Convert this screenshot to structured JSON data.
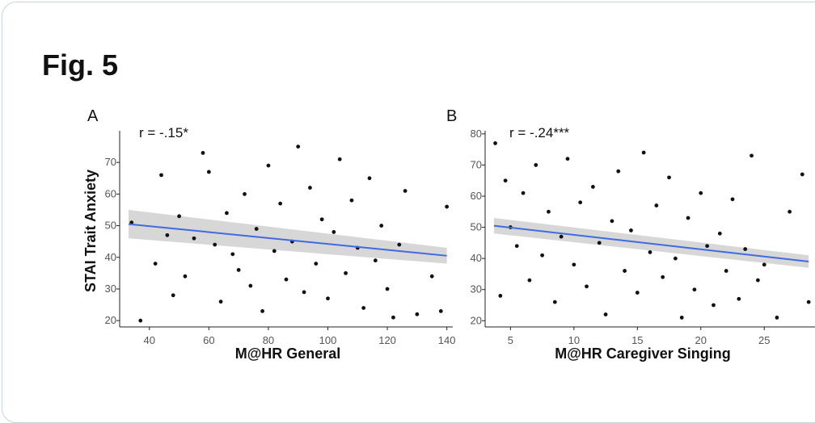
{
  "figure": {
    "title": "Fig. 5"
  },
  "chart_data": [
    {
      "type": "scatter",
      "panel": "A",
      "annotation": "r = -.15*",
      "xlabel": "M@HR General",
      "ylabel": "STAI Trait Anxiety",
      "xlim": [
        30,
        142
      ],
      "ylim": [
        18,
        80
      ],
      "xticks": [
        40,
        60,
        80,
        100,
        120,
        140
      ],
      "yticks": [
        20,
        30,
        40,
        50,
        60,
        70
      ],
      "regression": {
        "x": [
          33,
          140
        ],
        "y": [
          50.5,
          40.5
        ],
        "ci_lower": [
          46,
          38
        ],
        "ci_upper": [
          55,
          43
        ],
        "color": "#4169e1"
      },
      "x": [
        34,
        37,
        42,
        44,
        46,
        48,
        50,
        52,
        55,
        58,
        60,
        62,
        64,
        66,
        68,
        70,
        72,
        74,
        76,
        78,
        80,
        82,
        84,
        86,
        88,
        90,
        92,
        94,
        96,
        98,
        100,
        102,
        104,
        106,
        108,
        110,
        112,
        114,
        116,
        118,
        120,
        122,
        124,
        126,
        130,
        135,
        138,
        140
      ],
      "y": [
        51,
        20,
        38,
        66,
        47,
        28,
        53,
        34,
        46,
        73,
        67,
        44,
        26,
        54,
        41,
        36,
        60,
        31,
        49,
        23,
        69,
        42,
        57,
        33,
        45,
        75,
        29,
        62,
        38,
        52,
        27,
        48,
        71,
        35,
        58,
        43,
        24,
        65,
        39,
        50,
        30,
        21,
        44,
        61,
        22,
        34,
        23,
        56
      ]
    },
    {
      "type": "scatter",
      "panel": "B",
      "annotation": "r = -.24***",
      "xlabel": "M@HR Caregiver Singing",
      "ylabel": "",
      "xlim": [
        3,
        29
      ],
      "ylim": [
        18,
        81
      ],
      "xticks": [
        5,
        10,
        15,
        20,
        25
      ],
      "yticks": [
        20,
        30,
        40,
        50,
        60,
        70,
        80
      ],
      "regression": {
        "x": [
          3.7,
          28.5
        ],
        "y": [
          50.5,
          39
        ],
        "ci_lower": [
          48,
          37
        ],
        "ci_upper": [
          53,
          41
        ],
        "color": "#4169e1"
      },
      "x": [
        3.8,
        4.2,
        4.6,
        5.0,
        5.5,
        6.0,
        6.5,
        7.0,
        7.5,
        8.0,
        8.5,
        9.0,
        9.5,
        10.0,
        10.5,
        11.0,
        11.5,
        12.0,
        12.5,
        13.0,
        13.5,
        14.0,
        14.5,
        15.0,
        15.5,
        16.0,
        16.5,
        17.0,
        17.5,
        18.0,
        18.5,
        19.0,
        19.5,
        20.0,
        20.5,
        21.0,
        21.5,
        22.0,
        22.5,
        23.0,
        23.5,
        24.0,
        24.5,
        25.0,
        26.0,
        27.0,
        28.0,
        28.5
      ],
      "y": [
        77,
        28,
        65,
        50,
        44,
        61,
        33,
        70,
        41,
        55,
        26,
        47,
        72,
        38,
        58,
        31,
        63,
        45,
        22,
        52,
        68,
        36,
        49,
        29,
        74,
        42,
        57,
        34,
        66,
        40,
        21,
        53,
        30,
        61,
        44,
        25,
        48,
        36,
        59,
        27,
        43,
        73,
        33,
        38,
        21,
        55,
        67,
        26
      ]
    }
  ]
}
